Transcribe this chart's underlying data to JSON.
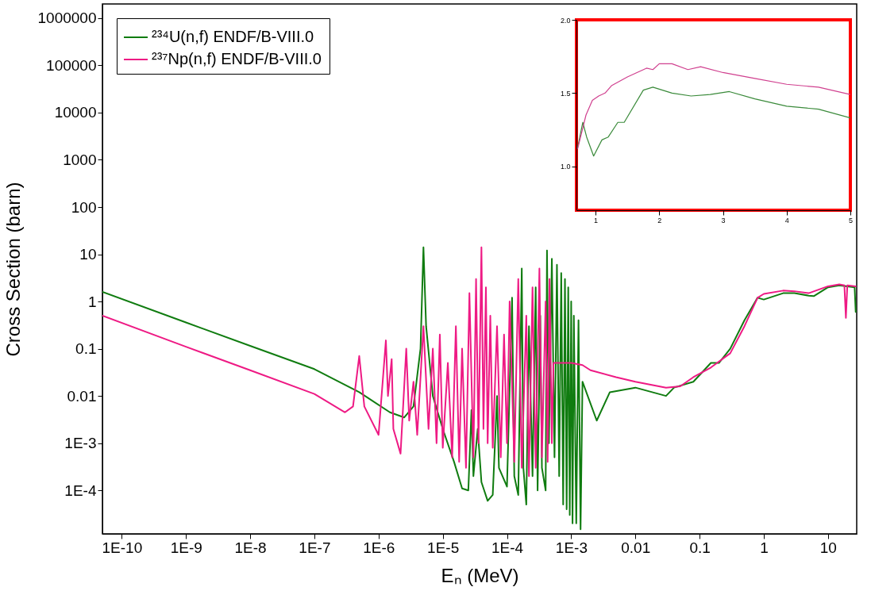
{
  "chart_data": [
    {
      "type": "line",
      "xlabel": "Eₙ (MeV)",
      "ylabel": "Cross Section (barn)",
      "log": "xy",
      "legend": "top left",
      "marker": "none",
      "line_style": "solid",
      "grid": false,
      "xlim": [
        5e-11,
        28
      ],
      "ylim": [
        1.2e-05,
        2000000
      ],
      "xticks": [
        {
          "value": 1e-10,
          "label": "1E-10"
        },
        {
          "value": 1e-09,
          "label": "1E-9"
        },
        {
          "value": 1e-08,
          "label": "1E-8"
        },
        {
          "value": 1e-07,
          "label": "1E-7"
        },
        {
          "value": 1e-06,
          "label": "1E-6"
        },
        {
          "value": 1e-05,
          "label": "1E-5"
        },
        {
          "value": 0.0001,
          "label": "1E-4"
        },
        {
          "value": 0.001,
          "label": "1E-3"
        },
        0.01,
        0.1,
        1,
        10
      ],
      "yticks": [
        {
          "value": 0.0001,
          "label": "1E-4"
        },
        {
          "value": 0.001,
          "label": "1E-3"
        },
        0.01,
        0.1,
        1,
        10,
        100,
        1000,
        10000,
        100000,
        1000000
      ],
      "series": [
        {
          "name": "²³⁴U(n,f)   ENDF/B-VIII.0",
          "color": "#107c10",
          "x": [
            5e-11,
            1e-09,
            1e-08,
            1e-07,
            5e-07,
            1.5e-06,
            2.5e-06,
            3.5e-06,
            4.5e-06,
            5e-06,
            5.5e-06,
            7e-06,
            1e-05,
            1.5e-05,
            2e-05,
            2.5e-05,
            2.8e-05,
            3e-05,
            3.5e-05,
            4e-05,
            5e-05,
            6e-05,
            7e-05,
            7.5e-05,
            0.0001,
            0.00012,
            0.00013,
            0.00015,
            0.00017,
            0.00018,
            0.0002,
            0.00022,
            0.00025,
            0.00028,
            0.0003,
            0.00033,
            0.00035,
            0.0004,
            0.00042,
            0.00045,
            0.0005,
            0.00055,
            0.0006,
            0.00065,
            0.0007,
            0.00075,
            0.0008,
            0.00085,
            0.0009,
            0.00095,
            0.001,
            0.00105,
            0.0011,
            0.0012,
            0.0013,
            0.0014,
            0.0015,
            0.0025,
            0.004,
            0.01,
            0.03,
            0.04,
            0.08,
            0.15,
            0.2,
            0.3,
            0.5,
            0.8,
            1,
            2,
            3,
            5,
            6,
            10,
            15,
            20,
            26,
            27
          ],
          "values": [
            1.6,
            0.36,
            0.115,
            0.037,
            0.012,
            0.0045,
            0.0035,
            0.006,
            0.1,
            14,
            0.3,
            0.01,
            0.002,
            0.0004,
            0.00011,
            0.0001,
            0.005,
            0.0002,
            0.002,
            0.00015,
            6e-05,
            8e-05,
            0.01,
            0.0003,
            0.00012,
            1.2,
            0.0002,
            8e-05,
            5,
            0.0003,
            5e-05,
            0.3,
            0.0002,
            2,
            0.0001,
            0.5,
            0.0003,
            0.0001,
            12,
            0.001,
            8,
            0.0005,
            6,
            0.0002,
            4,
            5e-05,
            3,
            4e-05,
            2,
            3e-05,
            1,
            2e-05,
            0.5,
            2e-05,
            0.4,
            1.5e-05,
            0.02,
            0.003,
            0.012,
            0.015,
            0.01,
            0.015,
            0.02,
            0.05,
            0.05,
            0.1,
            0.4,
            1.2,
            1.1,
            1.5,
            1.5,
            1.33,
            1.3,
            2,
            2.2,
            2.1,
            2,
            0.6
          ]
        },
        {
          "name": "²³⁷Np(n,f) ENDF/B-VIII.0",
          "color": "#ee1a84",
          "x": [
            5e-11,
            1e-09,
            1e-08,
            1e-07,
            3e-07,
            4e-07,
            5e-07,
            6e-07,
            1e-06,
            1.3e-06,
            1.4e-06,
            1.6e-06,
            1.7e-06,
            2.2e-06,
            2.7e-06,
            3e-06,
            3.5e-06,
            4e-06,
            5e-06,
            6e-06,
            7e-06,
            8e-06,
            9e-06,
            1e-05,
            1.2e-05,
            1.4e-05,
            1.6e-05,
            1.8e-05,
            2e-05,
            2.3e-05,
            2.6e-05,
            3e-05,
            3.3e-05,
            3.6e-05,
            4e-05,
            4.3e-05,
            4.7e-05,
            5e-05,
            5.5e-05,
            6e-05,
            7e-05,
            8e-05,
            9e-05,
            0.0001,
            0.00011,
            0.00013,
            0.00015,
            0.00017,
            0.0002,
            0.00022,
            0.00025,
            0.00028,
            0.00032,
            0.00035,
            0.0004,
            0.00043,
            0.00046,
            0.0005,
            0.00053,
            0.001,
            0.0015,
            0.002,
            0.005,
            0.01,
            0.03,
            0.05,
            0.08,
            0.15,
            0.3,
            0.5,
            0.8,
            1,
            2,
            3,
            5,
            10,
            15,
            18,
            19,
            20,
            27
          ],
          "values": [
            0.5,
            0.11,
            0.035,
            0.011,
            0.0045,
            0.006,
            0.07,
            0.006,
            0.0015,
            0.15,
            0.01,
            0.06,
            0.002,
            0.0006,
            0.1,
            0.003,
            0.02,
            0.0015,
            0.3,
            0.002,
            0.1,
            0.001,
            0.2,
            0.0008,
            0.05,
            0.0005,
            0.3,
            0.0004,
            0.1,
            0.0003,
            1.5,
            0.0005,
            3,
            0.001,
            14,
            0.002,
            2,
            0.001,
            0.5,
            0.0008,
            0.3,
            0.0005,
            0.2,
            0.001,
            1,
            0.0004,
            3,
            0.0003,
            0.5,
            0.0002,
            2,
            0.0003,
            5,
            0.0005,
            1,
            0.0004,
            3,
            0.001,
            0.05,
            0.05,
            0.045,
            0.035,
            0.025,
            0.02,
            0.015,
            0.016,
            0.025,
            0.04,
            0.08,
            0.3,
            1.2,
            1.45,
            1.7,
            1.65,
            1.5,
            2.1,
            2.3,
            2.2,
            0.45,
            2.2,
            2.1
          ]
        }
      ]
    },
    {
      "type": "line",
      "marker": "none",
      "line_style": "solid",
      "grid": false,
      "xlim": [
        0.7,
        5
      ],
      "ylim": [
        0.7,
        2.0
      ],
      "xticks": [
        1,
        2,
        3,
        4,
        5
      ],
      "yticks": [
        {
          "value": 1,
          "label": "1.0"
        },
        1.5,
        {
          "value": 2,
          "label": "2.0"
        }
      ],
      "series": [
        {
          "color": "#3a8a3a",
          "x": [
            0.72,
            0.8,
            0.86,
            0.97,
            1.1,
            1.2,
            1.35,
            1.45,
            1.75,
            1.9,
            2.2,
            2.5,
            2.8,
            3.1,
            3.5,
            4,
            4.5,
            5
          ],
          "values": [
            1.13,
            1.3,
            1.2,
            1.07,
            1.18,
            1.2,
            1.3,
            1.3,
            1.52,
            1.54,
            1.5,
            1.48,
            1.49,
            1.51,
            1.46,
            1.41,
            1.39,
            1.33
          ]
        },
        {
          "color": "#d0408f",
          "x": [
            0.72,
            0.85,
            0.95,
            1.05,
            1.15,
            1.25,
            1.5,
            1.8,
            1.9,
            2.0,
            2.2,
            2.45,
            2.65,
            3,
            3.5,
            4,
            4.5,
            5
          ],
          "values": [
            1.12,
            1.35,
            1.45,
            1.48,
            1.5,
            1.55,
            1.61,
            1.67,
            1.66,
            1.7,
            1.7,
            1.66,
            1.68,
            1.64,
            1.6,
            1.56,
            1.54,
            1.49
          ]
        }
      ]
    }
  ]
}
